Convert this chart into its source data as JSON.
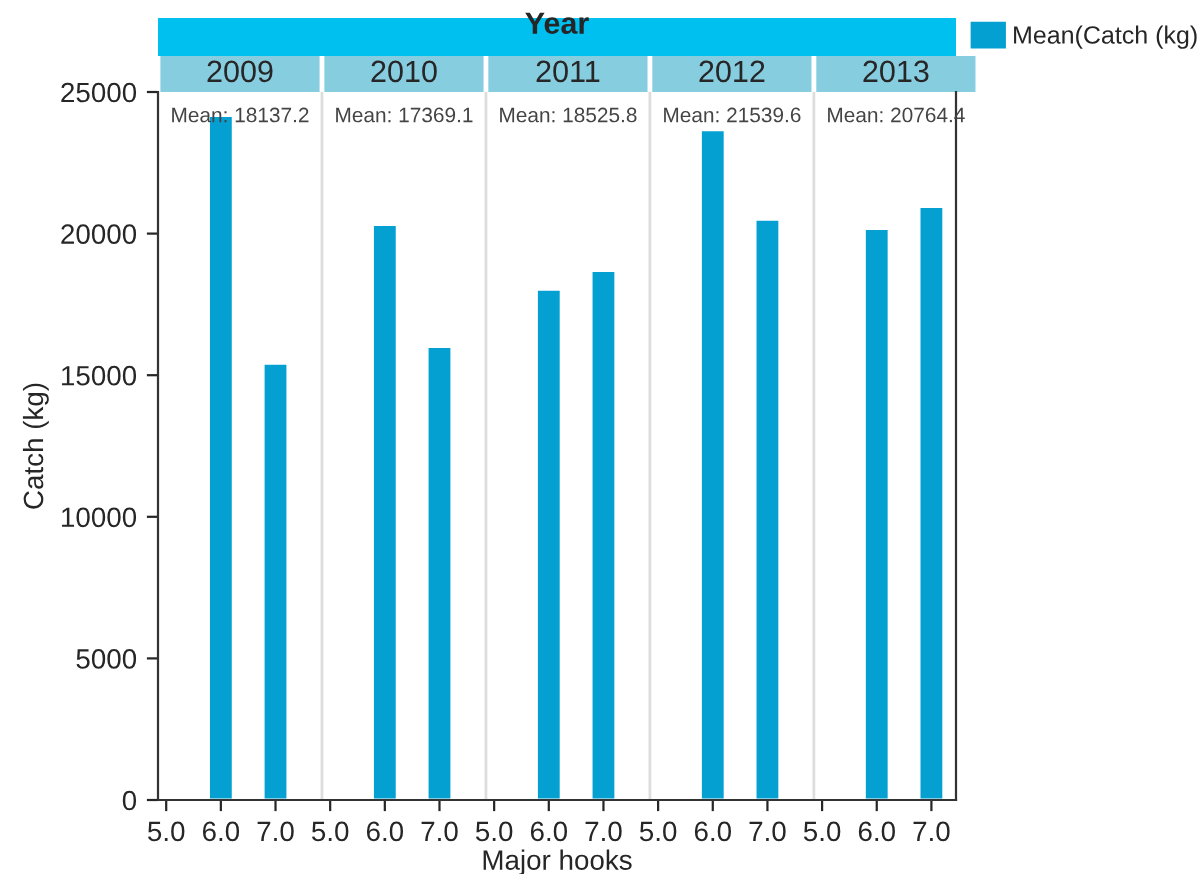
{
  "chart_data": {
    "type": "bar",
    "title": "Year",
    "xlabel": "Major hooks",
    "ylabel": "Catch (kg)",
    "categories": [
      "5.0",
      "6.0",
      "7.0",
      "5.0",
      "6.0",
      "7.0",
      "5.0",
      "6.0",
      "7.0",
      "5.0",
      "6.0",
      "7.0",
      "5.0",
      "6.0",
      "7.0"
    ],
    "series": [
      {
        "name": "Mean(Catch (kg)",
        "color": "#05a0d2",
        "values": [
          null,
          24170,
          15420,
          null,
          20320,
          16010,
          null,
          18030,
          18690,
          null,
          23660,
          20500,
          null,
          20180,
          20950
        ]
      }
    ],
    "ylim": [
      0,
      25000
    ],
    "yticks": [
      0,
      5000,
      10000,
      15000,
      20000,
      25000
    ],
    "annotations": [
      "2009",
      "2010",
      "2011",
      "2012",
      "2013",
      "Mean: 18137.2",
      "Mean: 17369.1",
      "Mean: 18525.8",
      "Mean: 21539.6",
      "Mean: 20764.4"
    ],
    "legend": "top right",
    "grid": false
  }
}
